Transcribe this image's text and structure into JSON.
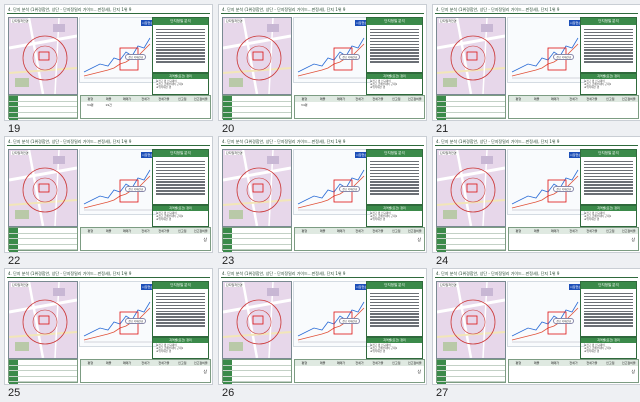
{
  "slides": [
    {
      "num": "19",
      "title": "4. 단지 분석 (1위경합안, 상단 - 단지정밀리 가이드...판정세), 단지 1위 9",
      "map_label": "단지밀착전경",
      "tag": "시장현상",
      "pill": "전고 기대신규",
      "textbox_head": "단지정밀 분석",
      "summary_head": "지역별(요건) 정리",
      "summary_lines": [
        "★전고 갭 신규대비",
        "★전고 급매수대비 근대1",
        "★위탁재건 갭"
      ],
      "table_head": [
        "평형",
        "매물",
        "매매가",
        "전세가",
        "전세가율",
        "인고점",
        "인고점비율"
      ],
      "table_vals": [
        "34평",
        "19건",
        "",
        "",
        "",
        "",
        ""
      ],
      "grade": ""
    },
    {
      "num": "20",
      "title": "4. 단지 분석 (1위경합안, 상단 - 단지정밀리 가이드...판정세), 단지 1위 9",
      "map_label": "단지밀착전경",
      "tag": "시장현상",
      "pill": "전고 기대신규",
      "textbox_head": "단지정밀 분석",
      "summary_head": "지역별(요건) 정리",
      "summary_lines": [
        "★전고 갭 신규대비",
        "★전고 급매수대비 근대1",
        "★위탁재건 갭"
      ],
      "table_head": [
        "평형",
        "매물",
        "매매가",
        "전세가",
        "전세가율",
        "인고점",
        "인고점비율"
      ],
      "table_vals": [
        "34평",
        "",
        "",
        "",
        "",
        "",
        ""
      ],
      "grade": ""
    },
    {
      "num": "21",
      "title": "4. 단지 분석 (1위경합안, 상단 - 단지정밀리 가이드...판정세), 단지 1위 9",
      "map_label": "단지밀착전경",
      "tag": "시장현상",
      "pill": "전고 기대신규",
      "textbox_head": "단지정밀 분석",
      "summary_head": "지역별(요건) 정리",
      "summary_lines": [
        "★전고 갭 신규대비",
        "★전고 급매수대비 근대1",
        "★위탁재건 갭"
      ],
      "table_head": [
        "평형",
        "매물",
        "매매가",
        "전세가",
        "전세가율",
        "인고점",
        "인고점비율"
      ],
      "table_vals": [
        "",
        "",
        "",
        "",
        "",
        "",
        ""
      ],
      "grade": ""
    },
    {
      "num": "22",
      "title": "4. 단지 분석 (1위경합안, 상단 - 단지정밀리 가이드...판정세), 단지 1위 9",
      "map_label": "단지밀착전경",
      "tag": "시장현상",
      "pill": "전고 기대신규",
      "textbox_head": "단지정밀 분석",
      "summary_head": "지역별(요건) 정리",
      "summary_lines": [
        "★전고 갭 신규대비",
        "★전고 급매수대비 근대1",
        "★위탁재건 갭"
      ],
      "table_head": [
        "평형",
        "매물",
        "매매가",
        "전세가",
        "전세가율",
        "인고점",
        "인고점비율"
      ],
      "table_vals": [
        "",
        "",
        "",
        "",
        "",
        "",
        ""
      ],
      "grade": "상"
    },
    {
      "num": "23",
      "title": "4. 단지 분석 (1위경합안, 상단 - 단지정밀리 가이드...판정세), 단지 1위 9",
      "map_label": "단지밀착전경",
      "tag": "시장현상",
      "pill": "전고 기대신규",
      "textbox_head": "단지정밀 분석",
      "summary_head": "지역별(요건) 정리",
      "summary_lines": [
        "★전고 갭 신규대비",
        "★전고 급매수대비 근대1",
        "★위탁재건 갭"
      ],
      "table_head": [
        "평형",
        "매물",
        "매매가",
        "전세가",
        "전세가율",
        "인고점",
        "인고점비율"
      ],
      "table_vals": [
        "",
        "",
        "",
        "",
        "",
        "",
        ""
      ],
      "grade": "상"
    },
    {
      "num": "24",
      "title": "4. 단지 분석 (1위경합안, 상단 - 단지정밀리 가이드...판정세), 단지 1위 9",
      "map_label": "단지밀착전경",
      "tag": "시장현상",
      "pill": "전고 기대신규",
      "textbox_head": "단지정밀 분석",
      "summary_head": "지역별(요건) 정리",
      "summary_lines": [
        "★전고 갭 신규대비",
        "★전고 급매수대비 근대1",
        "★위탁재건 갭"
      ],
      "table_head": [
        "평형",
        "매물",
        "매매가",
        "전세가",
        "전세가율",
        "인고점",
        "인고점비율"
      ],
      "table_vals": [
        "",
        "",
        "",
        "",
        "",
        "",
        ""
      ],
      "grade": "상"
    },
    {
      "num": "25",
      "title": "4. 단지 분석 (1위경합안, 상단 - 단지정밀리 가이드...판정세), 단지 1위 9",
      "map_label": "단지밀착전경",
      "tag": "시장현상",
      "pill": "전고 기대신규",
      "textbox_head": "단지정밀 분석",
      "summary_head": "지역별(요건) 정리",
      "summary_lines": [
        "★전고 갭 신규대비",
        "★전고 급매수대비 근대1",
        "★위탁재건 갭"
      ],
      "table_head": [
        "평형",
        "매물",
        "매매가",
        "전세가",
        "전세가율",
        "인고점",
        "인고점비율"
      ],
      "table_vals": [
        "",
        "",
        "",
        "",
        "",
        "",
        ""
      ],
      "grade": "상"
    },
    {
      "num": "26",
      "title": "4. 단지 분석 (1위경합안, 상단 - 단지정밀리 가이드...판정세), 단지 1위 9",
      "map_label": "단지밀착전경",
      "tag": "시장현상",
      "pill": "전고 기대신규",
      "textbox_head": "단지정밀 분석",
      "summary_head": "지역별(요건) 정리",
      "summary_lines": [
        "★전고 갭 신규대비",
        "★전고 급매수대비 근대1",
        "★위탁재건 갭"
      ],
      "table_head": [
        "평형",
        "매물",
        "매매가",
        "전세가",
        "전세가율",
        "인고점",
        "인고점비율"
      ],
      "table_vals": [
        "",
        "",
        "",
        "",
        "",
        "",
        ""
      ],
      "grade": "상"
    },
    {
      "num": "27",
      "title": "4. 단지 분석 (1위경합안, 상단 - 단지정밀리 가이드...판정세), 단지 1위 9",
      "map_label": "단지밀착전경",
      "tag": "시장현상",
      "pill": "전고 기대신규",
      "textbox_head": "단지정밀 분석",
      "summary_head": "지역별(요건) 정리",
      "summary_lines": [
        "★전고 갭 신규대비",
        "★전고 급매수대비 근대1",
        "★위탁재건 갭"
      ],
      "table_head": [
        "평형",
        "매물",
        "매매가",
        "전세가",
        "전세가율",
        "인고점",
        "인고점비율"
      ],
      "table_vals": [
        "",
        "",
        "",
        "",
        "",
        "",
        ""
      ],
      "grade": "상"
    }
  ],
  "colors": {
    "accent": "#3b8a4a",
    "title": "#1c3f28",
    "line_red": "#e0523a",
    "line_blue": "#2b6cd6"
  }
}
